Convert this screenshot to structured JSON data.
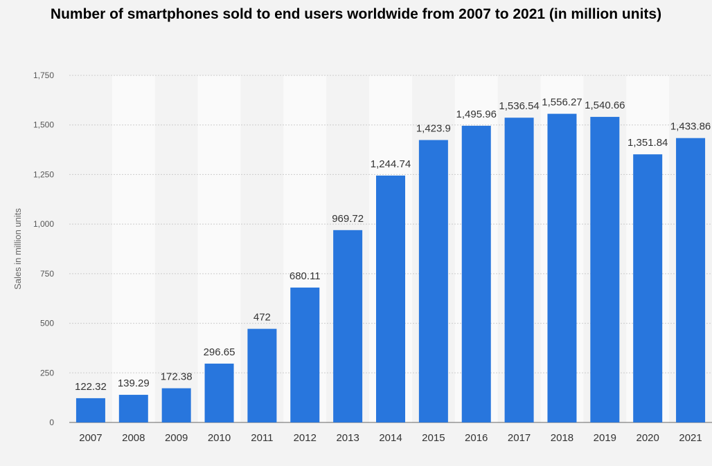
{
  "chart_data": {
    "type": "bar",
    "title": "Number of smartphones sold to end users worldwide from 2007 to 2021 (in million units)",
    "xlabel": "",
    "ylabel": "Sales in million units",
    "ylim": [
      0,
      1750
    ],
    "yticks": [
      0,
      250,
      500,
      750,
      1000,
      1250,
      1500,
      1750
    ],
    "ytick_labels": [
      "0",
      "250",
      "500",
      "750",
      "1,000",
      "1,250",
      "1,500",
      "1,750"
    ],
    "grid": true,
    "categories": [
      "2007",
      "2008",
      "2009",
      "2010",
      "2011",
      "2012",
      "2013",
      "2014",
      "2015",
      "2016",
      "2017",
      "2018",
      "2019",
      "2020",
      "2021"
    ],
    "values": [
      122.32,
      139.29,
      172.38,
      296.65,
      472,
      680.11,
      969.72,
      1244.74,
      1423.9,
      1495.96,
      1536.54,
      1556.27,
      1540.66,
      1351.84,
      1433.86
    ],
    "value_labels": [
      "122.32",
      "139.29",
      "172.38",
      "296.65",
      "472",
      "680.11",
      "969.72",
      "1,244.74",
      "1,423.9",
      "1,495.96",
      "1,536.54",
      "1,556.27",
      "1,540.66",
      "1,351.84",
      "1,433.86"
    ],
    "bar_color": "#2876dd",
    "band_color": "#fafafa",
    "background_color": "#f3f3f3"
  }
}
